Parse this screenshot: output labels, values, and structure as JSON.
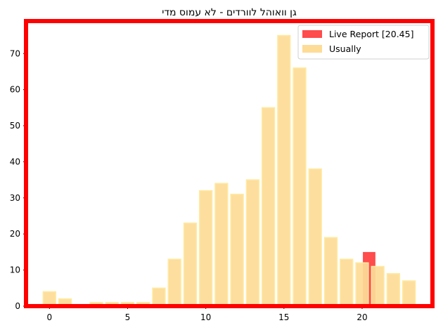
{
  "chart_data": {
    "type": "bar",
    "title": "גן וואוהל לוורדים - לא עמוס מדי",
    "xlabel": "",
    "ylabel": "",
    "xlim": [
      -1.5,
      24.5
    ],
    "ylim": [
      0,
      79
    ],
    "xticks": [
      0,
      5,
      10,
      15,
      20
    ],
    "yticks": [
      0,
      10,
      20,
      30,
      40,
      50,
      60,
      70
    ],
    "legend_position": "top-right",
    "grid": false,
    "series": [
      {
        "name": "Usually",
        "color": "#fddc97",
        "edge_color": "#ffeaa0",
        "x": [
          0,
          1,
          2,
          3,
          4,
          5,
          6,
          7,
          8,
          9,
          10,
          11,
          12,
          13,
          14,
          15,
          16,
          17,
          18,
          19,
          20,
          21,
          22,
          23
        ],
        "values": [
          4,
          2,
          0,
          1,
          1,
          1,
          1,
          5,
          13,
          23,
          32,
          34,
          31,
          35,
          55,
          75,
          66,
          38,
          19,
          13,
          12,
          11,
          9,
          7
        ]
      },
      {
        "name": "Live Report [20.45]",
        "color": "#ff4c4c",
        "x": [
          20.45
        ],
        "values": [
          15
        ]
      }
    ],
    "highlight_frame_color": "#ff0000"
  }
}
